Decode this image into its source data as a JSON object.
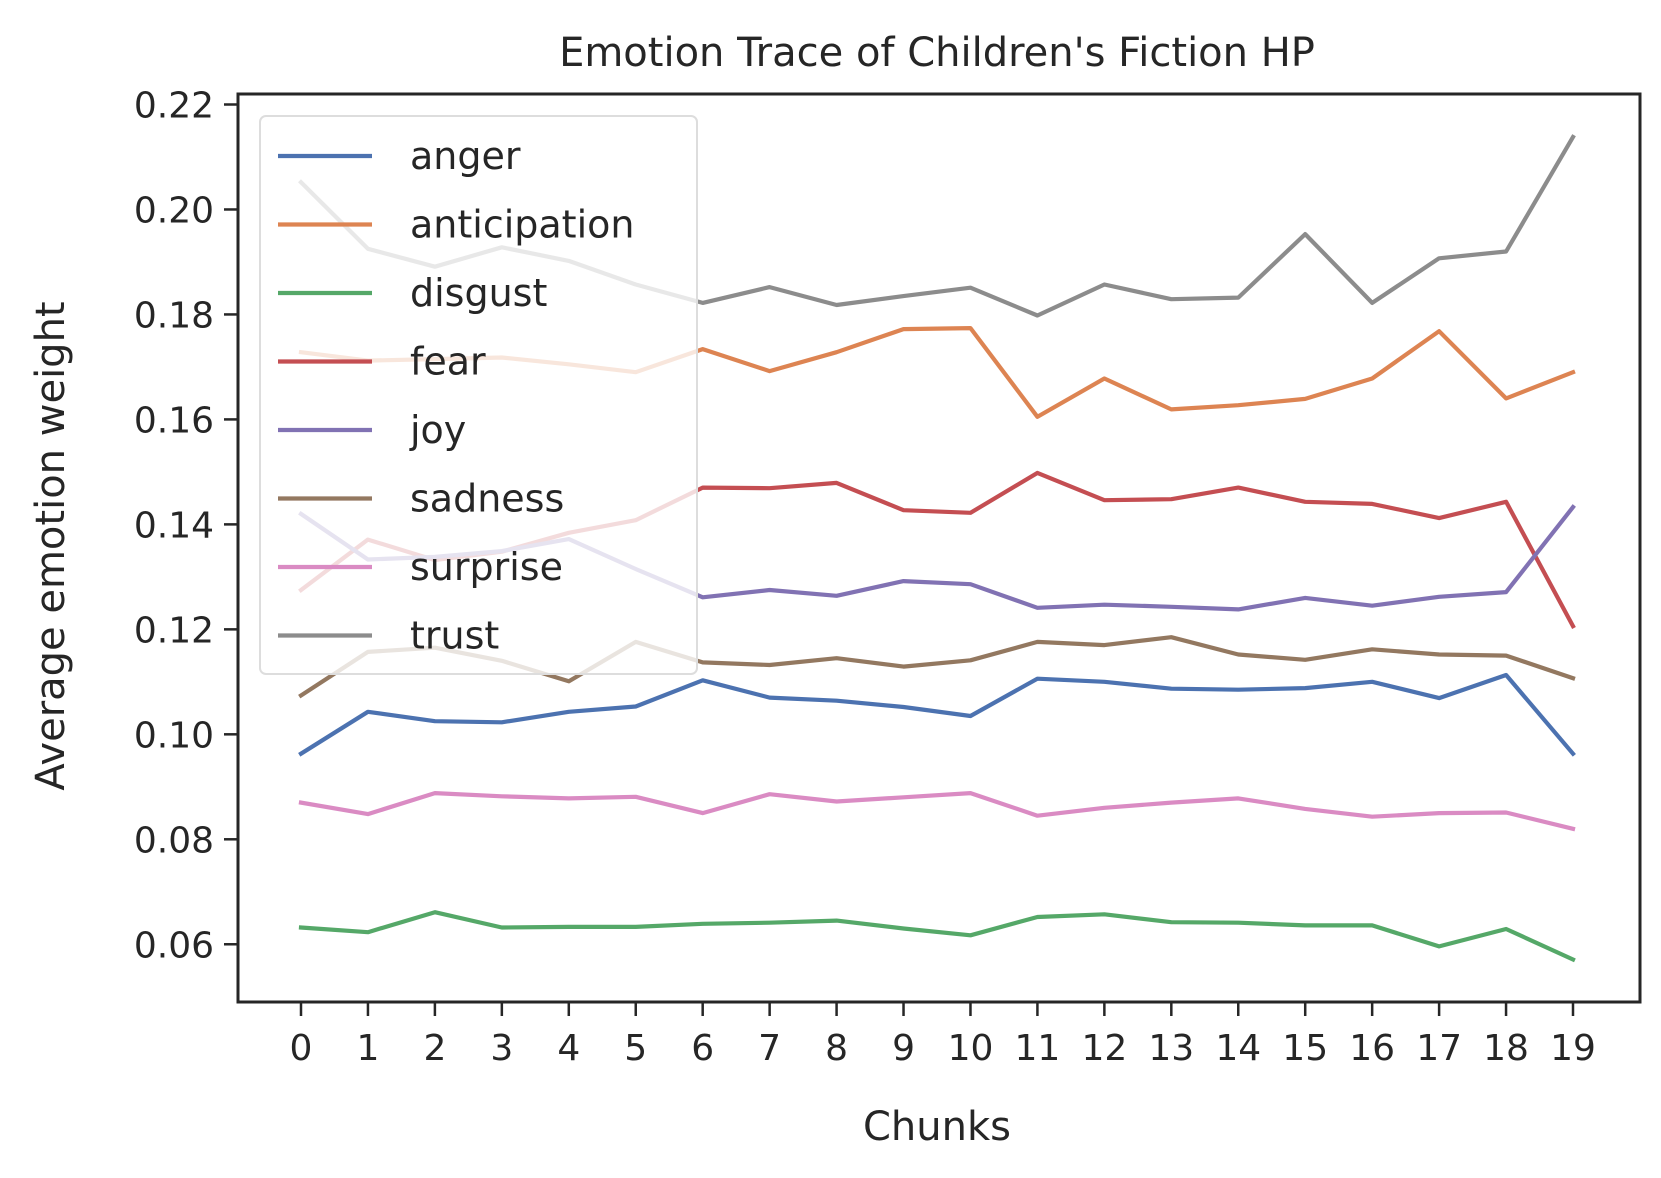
{
  "chart_data": {
    "type": "line",
    "title": "Emotion Trace of Children's Fiction HP",
    "xlabel": "Chunks",
    "ylabel": "Average emotion weight",
    "x": [
      0,
      1,
      2,
      3,
      4,
      5,
      6,
      7,
      8,
      9,
      10,
      11,
      12,
      13,
      14,
      15,
      16,
      17,
      18,
      19
    ],
    "xticks": [
      "0",
      "1",
      "2",
      "3",
      "4",
      "5",
      "6",
      "7",
      "8",
      "9",
      "10",
      "11",
      "12",
      "13",
      "14",
      "15",
      "16",
      "17",
      "18",
      "19"
    ],
    "ylim": [
      0.049,
      0.222
    ],
    "yticks": [
      "0.06",
      "0.08",
      "0.10",
      "0.12",
      "0.14",
      "0.16",
      "0.18",
      "0.20",
      "0.22"
    ],
    "ytick_values": [
      0.06,
      0.08,
      0.1,
      0.12,
      0.14,
      0.16,
      0.18,
      0.2,
      0.22
    ],
    "grid": false,
    "legend_position": "top-left",
    "series": [
      {
        "name": "anger",
        "color": "#4c72b0",
        "values": [
          0.0963,
          0.1043,
          0.1025,
          0.1023,
          0.1043,
          0.1053,
          0.1103,
          0.107,
          0.1064,
          0.1052,
          0.1035,
          0.1106,
          0.11,
          0.1087,
          0.1085,
          0.1088,
          0.11,
          0.1069,
          0.1113,
          0.0963
        ]
      },
      {
        "name": "anticipation",
        "color": "#dd8452",
        "values": [
          0.1728,
          0.1712,
          0.1715,
          0.1718,
          0.1705,
          0.169,
          0.1734,
          0.1692,
          0.1728,
          0.1772,
          0.1774,
          0.1605,
          0.1678,
          0.1619,
          0.1627,
          0.1639,
          0.1678,
          0.1768,
          0.164,
          0.169
        ]
      },
      {
        "name": "disgust",
        "color": "#55a868",
        "values": [
          0.0632,
          0.0623,
          0.0661,
          0.0632,
          0.0633,
          0.0633,
          0.0639,
          0.0641,
          0.0645,
          0.063,
          0.0617,
          0.0652,
          0.0657,
          0.0642,
          0.0641,
          0.0636,
          0.0636,
          0.0596,
          0.0629,
          0.0571
        ]
      },
      {
        "name": "fear",
        "color": "#c44e52",
        "values": [
          0.1275,
          0.1371,
          0.1332,
          0.1348,
          0.1384,
          0.1408,
          0.147,
          0.1469,
          0.1479,
          0.1427,
          0.1422,
          0.1498,
          0.1446,
          0.1448,
          0.147,
          0.1443,
          0.1439,
          0.1412,
          0.1443,
          0.1206
        ]
      },
      {
        "name": "joy",
        "color": "#8172b3",
        "values": [
          0.142,
          0.1333,
          0.1338,
          0.1349,
          0.1372,
          0.1315,
          0.1261,
          0.1275,
          0.1264,
          0.1292,
          0.1286,
          0.1241,
          0.1247,
          0.1243,
          0.1238,
          0.126,
          0.1245,
          0.1262,
          0.1271,
          0.1433
        ]
      },
      {
        "name": "sadness",
        "color": "#937860",
        "values": [
          0.1074,
          0.1157,
          0.1165,
          0.114,
          0.1101,
          0.1176,
          0.1137,
          0.1132,
          0.1145,
          0.1129,
          0.1141,
          0.1176,
          0.117,
          0.1185,
          0.1152,
          0.1142,
          0.1162,
          0.1152,
          0.115,
          0.1107
        ]
      },
      {
        "name": "surprise",
        "color": "#da8bc3",
        "values": [
          0.087,
          0.0848,
          0.0888,
          0.0882,
          0.0878,
          0.0881,
          0.085,
          0.0886,
          0.0872,
          0.088,
          0.0888,
          0.0845,
          0.086,
          0.087,
          0.0878,
          0.0858,
          0.0843,
          0.085,
          0.0851,
          0.082
        ]
      },
      {
        "name": "trust",
        "color": "#8c8c8c",
        "values": [
          0.2052,
          0.1925,
          0.1891,
          0.1928,
          0.1902,
          0.1857,
          0.1822,
          0.1852,
          0.1818,
          0.1835,
          0.1851,
          0.1798,
          0.1857,
          0.1829,
          0.1832,
          0.1953,
          0.1822,
          0.1907,
          0.192,
          0.2138
        ]
      }
    ]
  }
}
